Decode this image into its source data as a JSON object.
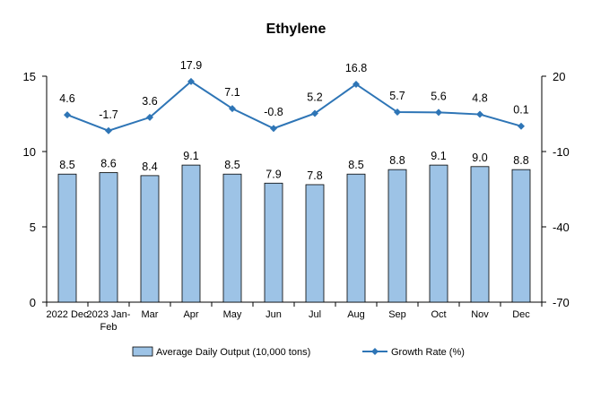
{
  "chart_data": {
    "type": "bar",
    "title": "Ethylene",
    "categories": [
      [
        "2022 Dec"
      ],
      [
        "2023 Jan-",
        "Feb"
      ],
      [
        "Mar"
      ],
      [
        "Apr"
      ],
      [
        "May"
      ],
      [
        "Jun"
      ],
      [
        "Jul"
      ],
      [
        "Aug"
      ],
      [
        "Sep"
      ],
      [
        "Oct"
      ],
      [
        "Nov"
      ],
      [
        "Dec"
      ]
    ],
    "series": [
      {
        "name": "Average Daily Output (10,000 tons)",
        "type": "bar",
        "axis": "left",
        "color": "#9DC3E6",
        "values": [
          8.5,
          8.6,
          8.4,
          9.1,
          8.5,
          7.9,
          7.8,
          8.5,
          8.8,
          9.1,
          9.0,
          8.8
        ],
        "labels": [
          "8.5",
          "8.6",
          "8.4",
          "9.1",
          "8.5",
          "7.9",
          "7.8",
          "8.5",
          "8.8",
          "9.1",
          "9.0",
          "8.8"
        ]
      },
      {
        "name": "Growth Rate (%)",
        "type": "line",
        "axis": "right",
        "color": "#2E75B6",
        "values": [
          4.6,
          -1.7,
          3.6,
          17.9,
          7.1,
          -0.8,
          5.2,
          16.8,
          5.7,
          5.6,
          4.8,
          0.1
        ],
        "labels": [
          "4.6",
          "-1.7",
          "3.6",
          "17.9",
          "7.1",
          "-0.8",
          "5.2",
          "16.8",
          "5.7",
          "5.6",
          "4.8",
          "0.1"
        ]
      }
    ],
    "y_left": {
      "ylim": [
        0,
        15
      ],
      "ticks": [
        "0",
        "5",
        "10",
        "15"
      ],
      "tick_values": [
        0,
        5,
        10,
        15
      ]
    },
    "y_right": {
      "ylim": [
        -70,
        20
      ],
      "ticks": [
        "-70",
        "-40",
        "-10",
        "20"
      ],
      "tick_values": [
        -70,
        -40,
        -10,
        20
      ]
    },
    "legend_position": "bottom",
    "grid": false
  }
}
